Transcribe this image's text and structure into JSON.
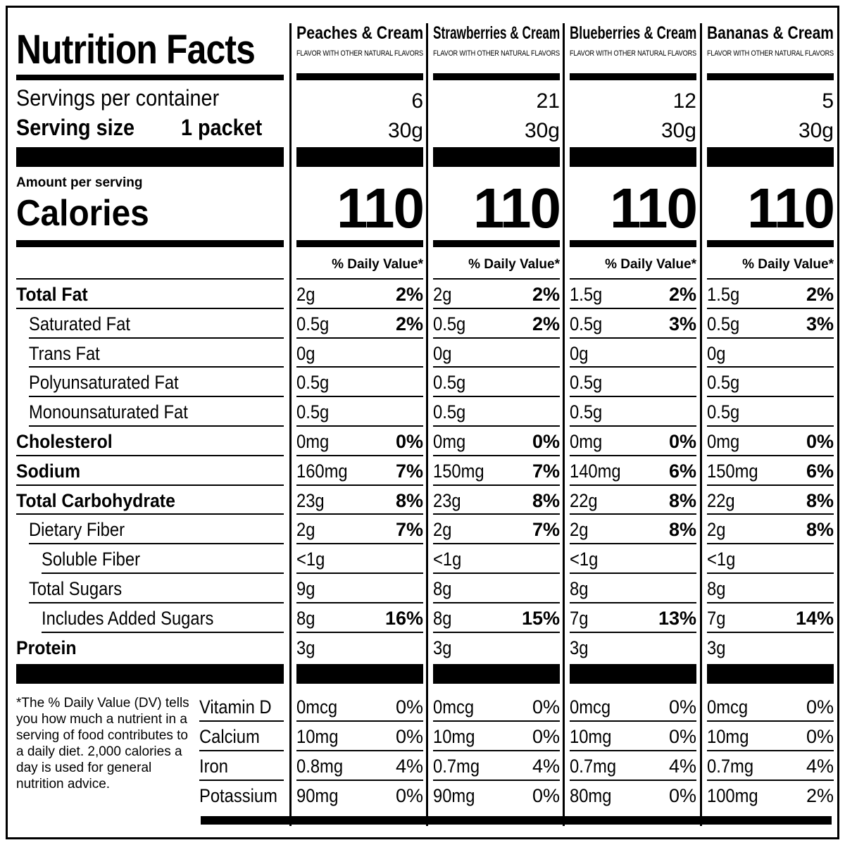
{
  "panel": {
    "title": "Nutrition Facts",
    "servings_label": "Servings per container",
    "serving_size_label": "Serving size",
    "serving_size_value": "1 packet",
    "amount_per_serving": "Amount per serving",
    "calories_label": "Calories",
    "footnote": "*The % Daily Value (DV) tells you how much a nutrient in a serving of food contributes to a daily diet. 2,000 calories a day is used for general nutrition advice."
  },
  "nutrients": [
    {
      "name": "Total Fat",
      "bold": true,
      "indent": 0
    },
    {
      "name": "Saturated Fat",
      "bold": false,
      "indent": 1
    },
    {
      "name": "Trans Fat",
      "bold": false,
      "indent": 1
    },
    {
      "name": "Polyunsaturated Fat",
      "bold": false,
      "indent": 1
    },
    {
      "name": "Monounsaturated Fat",
      "bold": false,
      "indent": 1
    },
    {
      "name": "Cholesterol",
      "bold": true,
      "indent": 0
    },
    {
      "name": "Sodium",
      "bold": true,
      "indent": 0
    },
    {
      "name": "Total Carbohydrate",
      "bold": true,
      "indent": 0
    },
    {
      "name": "Dietary Fiber",
      "bold": false,
      "indent": 1
    },
    {
      "name": "Soluble Fiber",
      "bold": false,
      "indent": 2
    },
    {
      "name": "Total Sugars",
      "bold": false,
      "indent": 1
    },
    {
      "name": "Includes Added Sugars",
      "bold": false,
      "indent": 2
    },
    {
      "name": "Protein",
      "bold": true,
      "indent": 0
    }
  ],
  "vitamins": [
    "Vitamin D",
    "Calcium",
    "Iron",
    "Potassium"
  ],
  "columns": [
    {
      "flavor": "Peaches & Cream",
      "subtitle": "FLAVOR WITH OTHER NATURAL FLAVORS",
      "servings": "6",
      "serving_size": "30g",
      "calories": "110",
      "dv_header": "% Daily Value*",
      "nutrients": [
        {
          "amount": "2g",
          "dv": "2%"
        },
        {
          "amount": "0.5g",
          "dv": "2%"
        },
        {
          "amount": "0g",
          "dv": ""
        },
        {
          "amount": "0.5g",
          "dv": ""
        },
        {
          "amount": "0.5g",
          "dv": ""
        },
        {
          "amount": "0mg",
          "dv": "0%"
        },
        {
          "amount": "160mg",
          "dv": "7%"
        },
        {
          "amount": "23g",
          "dv": "8%"
        },
        {
          "amount": "2g",
          "dv": "7%"
        },
        {
          "amount": "<1g",
          "dv": ""
        },
        {
          "amount": "9g",
          "dv": ""
        },
        {
          "amount": "8g",
          "dv": "16%"
        },
        {
          "amount": "3g",
          "dv": ""
        }
      ],
      "vitamins": [
        {
          "amount": "0mcg",
          "dv": "0%"
        },
        {
          "amount": "10mg",
          "dv": "0%"
        },
        {
          "amount": "0.8mg",
          "dv": "4%"
        },
        {
          "amount": "90mg",
          "dv": "0%"
        }
      ]
    },
    {
      "flavor": "Strawberries & Cream",
      "subtitle": "FLAVOR WITH OTHER NATURAL FLAVORS",
      "servings": "21",
      "serving_size": "30g",
      "calories": "110",
      "dv_header": "% Daily Value*",
      "nutrients": [
        {
          "amount": "2g",
          "dv": "2%"
        },
        {
          "amount": "0.5g",
          "dv": "2%"
        },
        {
          "amount": "0g",
          "dv": ""
        },
        {
          "amount": "0.5g",
          "dv": ""
        },
        {
          "amount": "0.5g",
          "dv": ""
        },
        {
          "amount": "0mg",
          "dv": "0%"
        },
        {
          "amount": "150mg",
          "dv": "7%"
        },
        {
          "amount": "23g",
          "dv": "8%"
        },
        {
          "amount": "2g",
          "dv": "7%"
        },
        {
          "amount": "<1g",
          "dv": ""
        },
        {
          "amount": "8g",
          "dv": ""
        },
        {
          "amount": "8g",
          "dv": "15%"
        },
        {
          "amount": "3g",
          "dv": ""
        }
      ],
      "vitamins": [
        {
          "amount": "0mcg",
          "dv": "0%"
        },
        {
          "amount": "10mg",
          "dv": "0%"
        },
        {
          "amount": "0.7mg",
          "dv": "4%"
        },
        {
          "amount": "90mg",
          "dv": "0%"
        }
      ]
    },
    {
      "flavor": "Blueberries & Cream",
      "subtitle": "FLAVOR WITH OTHER NATURAL FLAVORS",
      "servings": "12",
      "serving_size": "30g",
      "calories": "110",
      "dv_header": "% Daily Value*",
      "nutrients": [
        {
          "amount": "1.5g",
          "dv": "2%"
        },
        {
          "amount": "0.5g",
          "dv": "3%"
        },
        {
          "amount": "0g",
          "dv": ""
        },
        {
          "amount": "0.5g",
          "dv": ""
        },
        {
          "amount": "0.5g",
          "dv": ""
        },
        {
          "amount": "0mg",
          "dv": "0%"
        },
        {
          "amount": "140mg",
          "dv": "6%"
        },
        {
          "amount": "22g",
          "dv": "8%"
        },
        {
          "amount": "2g",
          "dv": "8%"
        },
        {
          "amount": "<1g",
          "dv": ""
        },
        {
          "amount": "8g",
          "dv": ""
        },
        {
          "amount": "7g",
          "dv": "13%"
        },
        {
          "amount": "3g",
          "dv": ""
        }
      ],
      "vitamins": [
        {
          "amount": "0mcg",
          "dv": "0%"
        },
        {
          "amount": "10mg",
          "dv": "0%"
        },
        {
          "amount": "0.7mg",
          "dv": "4%"
        },
        {
          "amount": "80mg",
          "dv": "0%"
        }
      ]
    },
    {
      "flavor": "Bananas & Cream",
      "subtitle": "FLAVOR WITH OTHER NATURAL FLAVORS",
      "servings": "5",
      "serving_size": "30g",
      "calories": "110",
      "dv_header": "% Daily Value*",
      "nutrients": [
        {
          "amount": "1.5g",
          "dv": "2%"
        },
        {
          "amount": "0.5g",
          "dv": "3%"
        },
        {
          "amount": "0g",
          "dv": ""
        },
        {
          "amount": "0.5g",
          "dv": ""
        },
        {
          "amount": "0.5g",
          "dv": ""
        },
        {
          "amount": "0mg",
          "dv": "0%"
        },
        {
          "amount": "150mg",
          "dv": "6%"
        },
        {
          "amount": "22g",
          "dv": "8%"
        },
        {
          "amount": "2g",
          "dv": "8%"
        },
        {
          "amount": "<1g",
          "dv": ""
        },
        {
          "amount": "8g",
          "dv": ""
        },
        {
          "amount": "7g",
          "dv": "14%"
        },
        {
          "amount": "3g",
          "dv": ""
        }
      ],
      "vitamins": [
        {
          "amount": "0mcg",
          "dv": "0%"
        },
        {
          "amount": "10mg",
          "dv": "0%"
        },
        {
          "amount": "0.7mg",
          "dv": "4%"
        },
        {
          "amount": "100mg",
          "dv": "2%"
        }
      ]
    }
  ]
}
